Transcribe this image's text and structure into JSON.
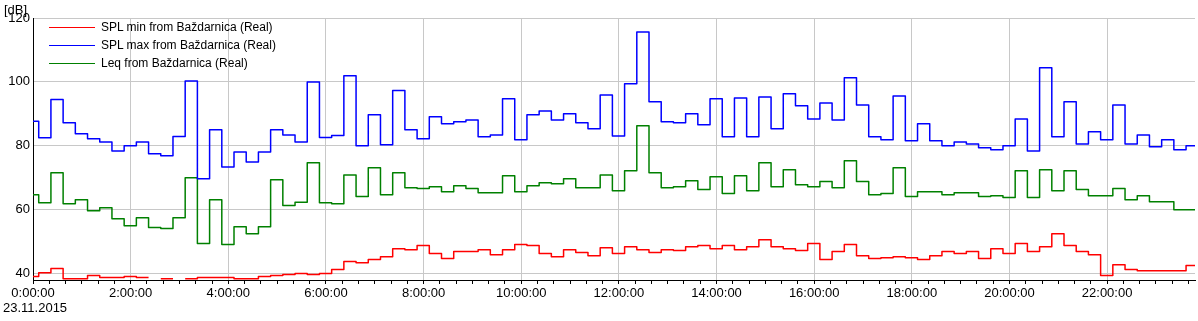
{
  "chart_data": {
    "type": "step",
    "ylabel": "[dB]",
    "annotations": [
      "23.11.2015"
    ],
    "x": [
      0,
      0.117,
      0.367,
      0.617,
      0.867,
      1.117,
      1.367,
      1.617,
      1.867,
      2.117,
      2.367,
      2.617,
      2.867,
      3.117,
      3.367,
      3.617,
      3.867,
      4.117,
      4.367,
      4.617,
      4.867,
      5.117,
      5.367,
      5.617,
      5.867,
      6.117,
      6.367,
      6.617,
      6.867,
      7.117,
      7.367,
      7.617,
      7.867,
      8.117,
      8.367,
      8.617,
      8.867,
      9.117,
      9.367,
      9.617,
      9.867,
      10.117,
      10.367,
      10.617,
      10.867,
      11.117,
      11.367,
      11.617,
      11.867,
      12.117,
      12.367,
      12.617,
      12.867,
      13.117,
      13.367,
      13.617,
      13.867,
      14.117,
      14.367,
      14.617,
      14.867,
      15.117,
      15.367,
      15.617,
      15.867,
      16.117,
      16.367,
      16.617,
      16.867,
      17.117,
      17.367,
      17.617,
      17.867,
      18.117,
      18.367,
      18.617,
      18.867,
      19.117,
      19.367,
      19.617,
      19.867,
      20.117,
      20.367,
      20.617,
      20.867,
      21.117,
      21.367,
      21.617,
      21.867,
      22.117,
      22.367,
      22.617,
      22.867,
      23.117,
      23.367,
      23.617,
      23.8
    ],
    "series": [
      {
        "name": "SPL min from Baždarnica (Real)",
        "color": "#ff0000",
        "values": [
          39.1,
          40.3,
          41.6,
          38.4,
          38.4,
          39.4,
          38.8,
          38.8,
          39.1,
          38.8,
          null,
          38.4,
          null,
          38.4,
          38.8,
          38.8,
          38.8,
          38.4,
          38.4,
          39.1,
          39.4,
          39.7,
          40.0,
          39.7,
          40.0,
          41.3,
          43.8,
          43.4,
          44.4,
          45.3,
          47.8,
          47.5,
          48.8,
          46.3,
          44.7,
          46.9,
          46.9,
          47.5,
          45.9,
          47.5,
          49.1,
          48.8,
          46.3,
          45.3,
          47.5,
          46.6,
          45.6,
          48.1,
          46.3,
          48.4,
          47.5,
          46.6,
          47.5,
          47.2,
          48.4,
          48.8,
          47.8,
          48.8,
          47.5,
          48.4,
          50.6,
          48.4,
          47.8,
          47.2,
          49.4,
          44.4,
          46.9,
          49.1,
          45.6,
          44.7,
          45.0,
          45.3,
          45.0,
          44.4,
          45.6,
          46.9,
          46.3,
          46.9,
          44.7,
          47.8,
          46.3,
          49.4,
          46.9,
          48.4,
          52.5,
          48.8,
          46.9,
          45.9,
          39.4,
          42.8,
          41.3,
          40.9,
          40.9,
          40.9,
          40.9,
          42.5,
          42.5
        ]
      },
      {
        "name": "SPL max from Baždarnica (Real)",
        "color": "#0000ff",
        "values": [
          87.7,
          82.5,
          94.5,
          87.2,
          83.8,
          82.2,
          81.2,
          78.4,
          80.0,
          81.2,
          77.5,
          76.9,
          82.9,
          100.3,
          69.7,
          85.0,
          73.4,
          78.1,
          74.9,
          78.1,
          85.0,
          83.4,
          81.2,
          100.0,
          82.6,
          83.2,
          101.9,
          80.0,
          89.7,
          80.3,
          97.3,
          85.0,
          82.2,
          89.1,
          86.9,
          87.5,
          88.1,
          82.8,
          83.4,
          94.7,
          81.9,
          89.7,
          90.9,
          88.1,
          90.0,
          87.2,
          85.3,
          95.9,
          83.1,
          99.4,
          115.6,
          93.8,
          87.5,
          87.2,
          90.0,
          86.6,
          94.7,
          82.8,
          95.0,
          82.8,
          95.3,
          85.3,
          96.3,
          92.5,
          88.4,
          93.4,
          88.1,
          101.3,
          92.8,
          82.8,
          81.9,
          95.6,
          81.6,
          86.9,
          81.6,
          80.0,
          81.2,
          80.6,
          79.4,
          78.8,
          80.0,
          88.4,
          78.4,
          104.4,
          82.8,
          93.8,
          80.6,
          84.4,
          81.9,
          92.8,
          80.6,
          83.4,
          79.7,
          81.9,
          78.8,
          80.0,
          80.0
        ]
      },
      {
        "name": "Leq from Baždarnica (Real)",
        "color": "#008000",
        "values": [
          64.7,
          62.2,
          71.6,
          61.9,
          63.1,
          59.7,
          60.6,
          57.2,
          55.0,
          57.5,
          54.4,
          54.1,
          57.5,
          70.0,
          49.4,
          63.1,
          49.1,
          54.7,
          52.5,
          54.7,
          69.4,
          61.3,
          62.3,
          74.7,
          62.2,
          61.9,
          70.9,
          64.1,
          73.1,
          64.7,
          71.6,
          66.9,
          66.6,
          67.2,
          65.6,
          67.5,
          66.6,
          65.3,
          65.3,
          70.6,
          65.6,
          67.5,
          68.4,
          68.1,
          69.7,
          66.9,
          66.9,
          70.9,
          65.9,
          72.2,
          86.3,
          71.6,
          66.9,
          67.2,
          69.1,
          66.3,
          70.3,
          65.1,
          70.6,
          65.9,
          74.7,
          67.2,
          72.5,
          67.8,
          67.2,
          68.8,
          66.9,
          75.3,
          68.8,
          64.7,
          65.1,
          73.1,
          64.1,
          65.6,
          65.6,
          64.7,
          65.3,
          65.3,
          64.1,
          64.4,
          63.8,
          72.2,
          63.8,
          72.5,
          65.9,
          72.2,
          66.3,
          64.4,
          64.4,
          66.6,
          63.1,
          64.4,
          62.5,
          62.5,
          60.0,
          60.0,
          60.0
        ]
      }
    ],
    "xlim": [
      0,
      23.8
    ],
    "xticks": [
      {
        "value": 0,
        "label": "0:00:00"
      },
      {
        "value": 0.333,
        "label": null
      },
      {
        "value": 0.667,
        "label": null
      },
      {
        "value": 1,
        "label": null
      },
      {
        "value": 1.333,
        "label": null
      },
      {
        "value": 1.667,
        "label": null
      },
      {
        "value": 2,
        "label": "2:00:00"
      },
      {
        "value": 2.333,
        "label": null
      },
      {
        "value": 2.667,
        "label": null
      },
      {
        "value": 3,
        "label": null
      },
      {
        "value": 3.333,
        "label": null
      },
      {
        "value": 3.667,
        "label": null
      },
      {
        "value": 4,
        "label": "4:00:00"
      },
      {
        "value": 4.333,
        "label": null
      },
      {
        "value": 4.667,
        "label": null
      },
      {
        "value": 5,
        "label": null
      },
      {
        "value": 5.333,
        "label": null
      },
      {
        "value": 5.667,
        "label": null
      },
      {
        "value": 6,
        "label": "6:00:00"
      },
      {
        "value": 6.333,
        "label": null
      },
      {
        "value": 6.667,
        "label": null
      },
      {
        "value": 7,
        "label": null
      },
      {
        "value": 7.333,
        "label": null
      },
      {
        "value": 7.667,
        "label": null
      },
      {
        "value": 8,
        "label": "8:00:00"
      },
      {
        "value": 8.333,
        "label": null
      },
      {
        "value": 8.667,
        "label": null
      },
      {
        "value": 9,
        "label": null
      },
      {
        "value": 9.333,
        "label": null
      },
      {
        "value": 9.667,
        "label": null
      },
      {
        "value": 10,
        "label": "10:00:00"
      },
      {
        "value": 10.333,
        "label": null
      },
      {
        "value": 10.667,
        "label": null
      },
      {
        "value": 11,
        "label": null
      },
      {
        "value": 11.333,
        "label": null
      },
      {
        "value": 11.667,
        "label": null
      },
      {
        "value": 12,
        "label": "12:00:00"
      },
      {
        "value": 12.333,
        "label": null
      },
      {
        "value": 12.667,
        "label": null
      },
      {
        "value": 13,
        "label": null
      },
      {
        "value": 13.333,
        "label": null
      },
      {
        "value": 13.667,
        "label": null
      },
      {
        "value": 14,
        "label": "14:00:00"
      },
      {
        "value": 14.333,
        "label": null
      },
      {
        "value": 14.667,
        "label": null
      },
      {
        "value": 15,
        "label": null
      },
      {
        "value": 15.333,
        "label": null
      },
      {
        "value": 15.667,
        "label": null
      },
      {
        "value": 16,
        "label": "16:00:00"
      },
      {
        "value": 16.333,
        "label": null
      },
      {
        "value": 16.667,
        "label": null
      },
      {
        "value": 17,
        "label": null
      },
      {
        "value": 17.333,
        "label": null
      },
      {
        "value": 17.667,
        "label": null
      },
      {
        "value": 18,
        "label": "18:00:00"
      },
      {
        "value": 18.333,
        "label": null
      },
      {
        "value": 18.667,
        "label": null
      },
      {
        "value": 19,
        "label": null
      },
      {
        "value": 19.333,
        "label": null
      },
      {
        "value": 19.667,
        "label": null
      },
      {
        "value": 20,
        "label": "20:00:00"
      },
      {
        "value": 20.333,
        "label": null
      },
      {
        "value": 20.667,
        "label": null
      },
      {
        "value": 21,
        "label": null
      },
      {
        "value": 21.333,
        "label": null
      },
      {
        "value": 21.667,
        "label": null
      },
      {
        "value": 22,
        "label": "22:00:00"
      },
      {
        "value": 22.333,
        "label": null
      },
      {
        "value": 22.667,
        "label": null
      },
      {
        "value": 23,
        "label": null
      },
      {
        "value": 23.333,
        "label": null
      },
      {
        "value": 23.667,
        "label": null
      }
    ],
    "ylim": [
      38,
      120
    ],
    "yticks": [
      40,
      60,
      80,
      100,
      120
    ],
    "grid": true,
    "legend": "top left"
  }
}
